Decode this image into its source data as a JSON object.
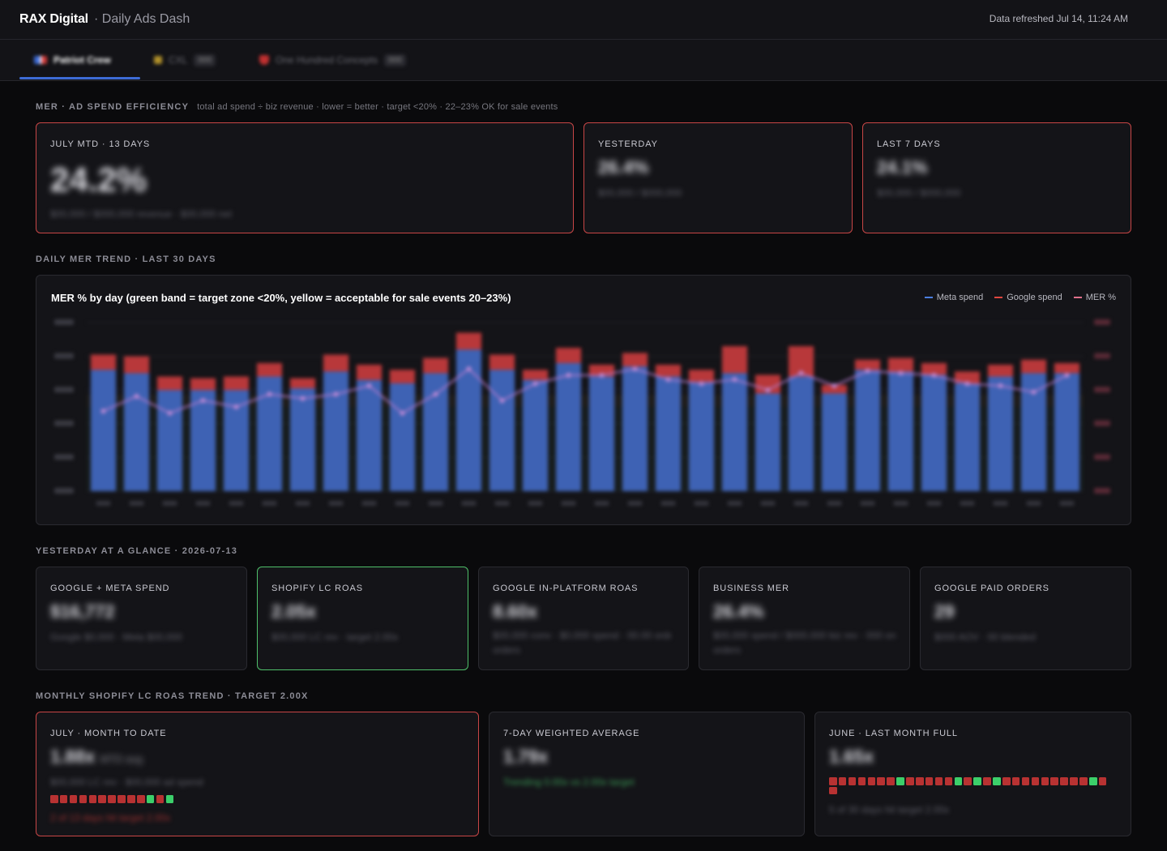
{
  "header": {
    "brand": "RAX Digital",
    "subtitle": "· Daily Ads Dash",
    "refreshed": "Data refreshed Jul 14, 11:24 AM"
  },
  "tabs": [
    {
      "label": "Patriot Crew",
      "count": "",
      "active": true,
      "icon": "flag-icon"
    },
    {
      "label": "CXL",
      "count": "000",
      "active": false,
      "icon": "bolt-icon"
    },
    {
      "label": "One Hundred Concepts",
      "count": "000",
      "active": false,
      "icon": "heart-icon"
    }
  ],
  "mer": {
    "title": "MER · AD SPEND EFFICIENCY",
    "hint": "total ad spend ÷ biz revenue · lower = better · target <20% · 22–23% OK for sale events",
    "cards": [
      {
        "label": "JULY MTD · 13 DAYS",
        "value": "24.2%",
        "sub": "$00,000 / $000,000 revenue · $00,000 net"
      },
      {
        "label": "YESTERDAY",
        "value": "26.4%",
        "sub": "$00,000 / $000,000"
      },
      {
        "label": "LAST 7 DAYS",
        "value": "24.1%",
        "sub": "$00,000 / $000,000"
      }
    ]
  },
  "trend": {
    "section_title": "DAILY MER TREND · LAST 30 DAYS",
    "chart_title": "MER % by day (green band = target zone <20%, yellow = acceptable for sale events 20–23%)",
    "legend": [
      {
        "label": "Meta spend",
        "color": "#4a7fe0"
      },
      {
        "label": "Google spend",
        "color": "#e0473f"
      },
      {
        "label": "MER %",
        "color": "#e0708a"
      }
    ]
  },
  "chart_data": {
    "type": "bar",
    "stacked": true,
    "title": "MER % by day (green band = target zone <20%, yellow = acceptable for sale events 20–23%)",
    "series": [
      {
        "name": "Meta spend",
        "values": [
          72,
          70,
          60,
          60,
          60,
          68,
          61,
          71,
          66,
          64,
          70,
          84,
          72,
          66,
          76,
          68,
          74,
          68,
          65,
          70,
          58,
          68,
          58,
          72,
          71,
          69,
          64,
          68,
          70,
          70
        ]
      },
      {
        "name": "Google spend",
        "values": [
          9,
          10,
          8,
          7,
          8,
          8,
          6,
          10,
          9,
          8,
          9,
          10,
          9,
          6,
          9,
          7,
          8,
          7,
          7,
          16,
          11,
          18,
          5,
          6,
          8,
          7,
          7,
          7,
          8,
          6
        ]
      },
      {
        "name": "MER %",
        "values": [
          19.0,
          22.5,
          18.5,
          21.5,
          20.0,
          23.0,
          22.0,
          23.0,
          25.0,
          18.5,
          23.0,
          29.0,
          21.5,
          25.5,
          27.5,
          27.5,
          29.0,
          26.5,
          25.5,
          26.5,
          24.0,
          28.0,
          25.0,
          28.5,
          28.0,
          27.5,
          25.5,
          25.0,
          23.5,
          27.5
        ],
        "axis": "right"
      }
    ],
    "grid": true,
    "legend_position": "top-right"
  },
  "glance": {
    "title": "YESTERDAY AT A GLANCE · 2026-07-13",
    "cards": [
      {
        "label": "GOOGLE + META SPEND",
        "value": "$16,772",
        "sub": "Google $0,000 · Meta $00,000"
      },
      {
        "label": "SHOPIFY LC ROAS",
        "value": "2.05x",
        "sub": "$00,000 LC rev · target 2.00x"
      },
      {
        "label": "GOOGLE IN-PLATFORM ROAS",
        "value": "8.60x",
        "sub": "$00,000 conv · $0,000 spend · 00.00 orders",
        "sub2": "orders"
      },
      {
        "label": "BUSINESS MER",
        "value": "26.4%",
        "sub": "$00,000 spend / $000,000 biz rev · 000 orders",
        "sub2": "orders"
      },
      {
        "label": "GOOGLE PAID ORDERS",
        "value": "29",
        "sub": "$000 AOV · 00 blended"
      }
    ]
  },
  "monthly": {
    "title": "MONTHLY SHOPIFY LC ROAS TREND · TARGET 2.00X",
    "cards": [
      {
        "label": "JULY · MONTH TO DATE",
        "value": "1.88x",
        "value_note": "MTD avg",
        "sub": "$00,000 LC rev · $00,000 ad spend",
        "foot": "2 of 13 days hit target 2.00x"
      },
      {
        "label": "7-DAY WEIGHTED AVERAGE",
        "value": "1.79x",
        "sub": "Trending 0.00x vs 2.00x target"
      },
      {
        "label": "JUNE · LAST MONTH FULL",
        "value": "1.65x",
        "foot": "5 of 30 days hit target 2.00x"
      }
    ],
    "july_days": [
      "miss",
      "miss",
      "miss",
      "miss",
      "miss",
      "miss",
      "miss",
      "miss",
      "miss",
      "miss",
      "hit",
      "miss",
      "hit"
    ],
    "june_days": [
      "miss",
      "miss",
      "miss",
      "miss",
      "miss",
      "miss",
      "miss",
      "hit",
      "miss",
      "miss",
      "miss",
      "miss",
      "miss",
      "hit",
      "miss",
      "hit",
      "miss",
      "hit",
      "miss",
      "miss",
      "miss",
      "miss",
      "miss",
      "miss",
      "miss",
      "miss",
      "miss",
      "hit",
      "miss",
      "miss"
    ],
    "colors": {
      "hit": "#3ccf6a",
      "miss": "#b83232"
    }
  }
}
